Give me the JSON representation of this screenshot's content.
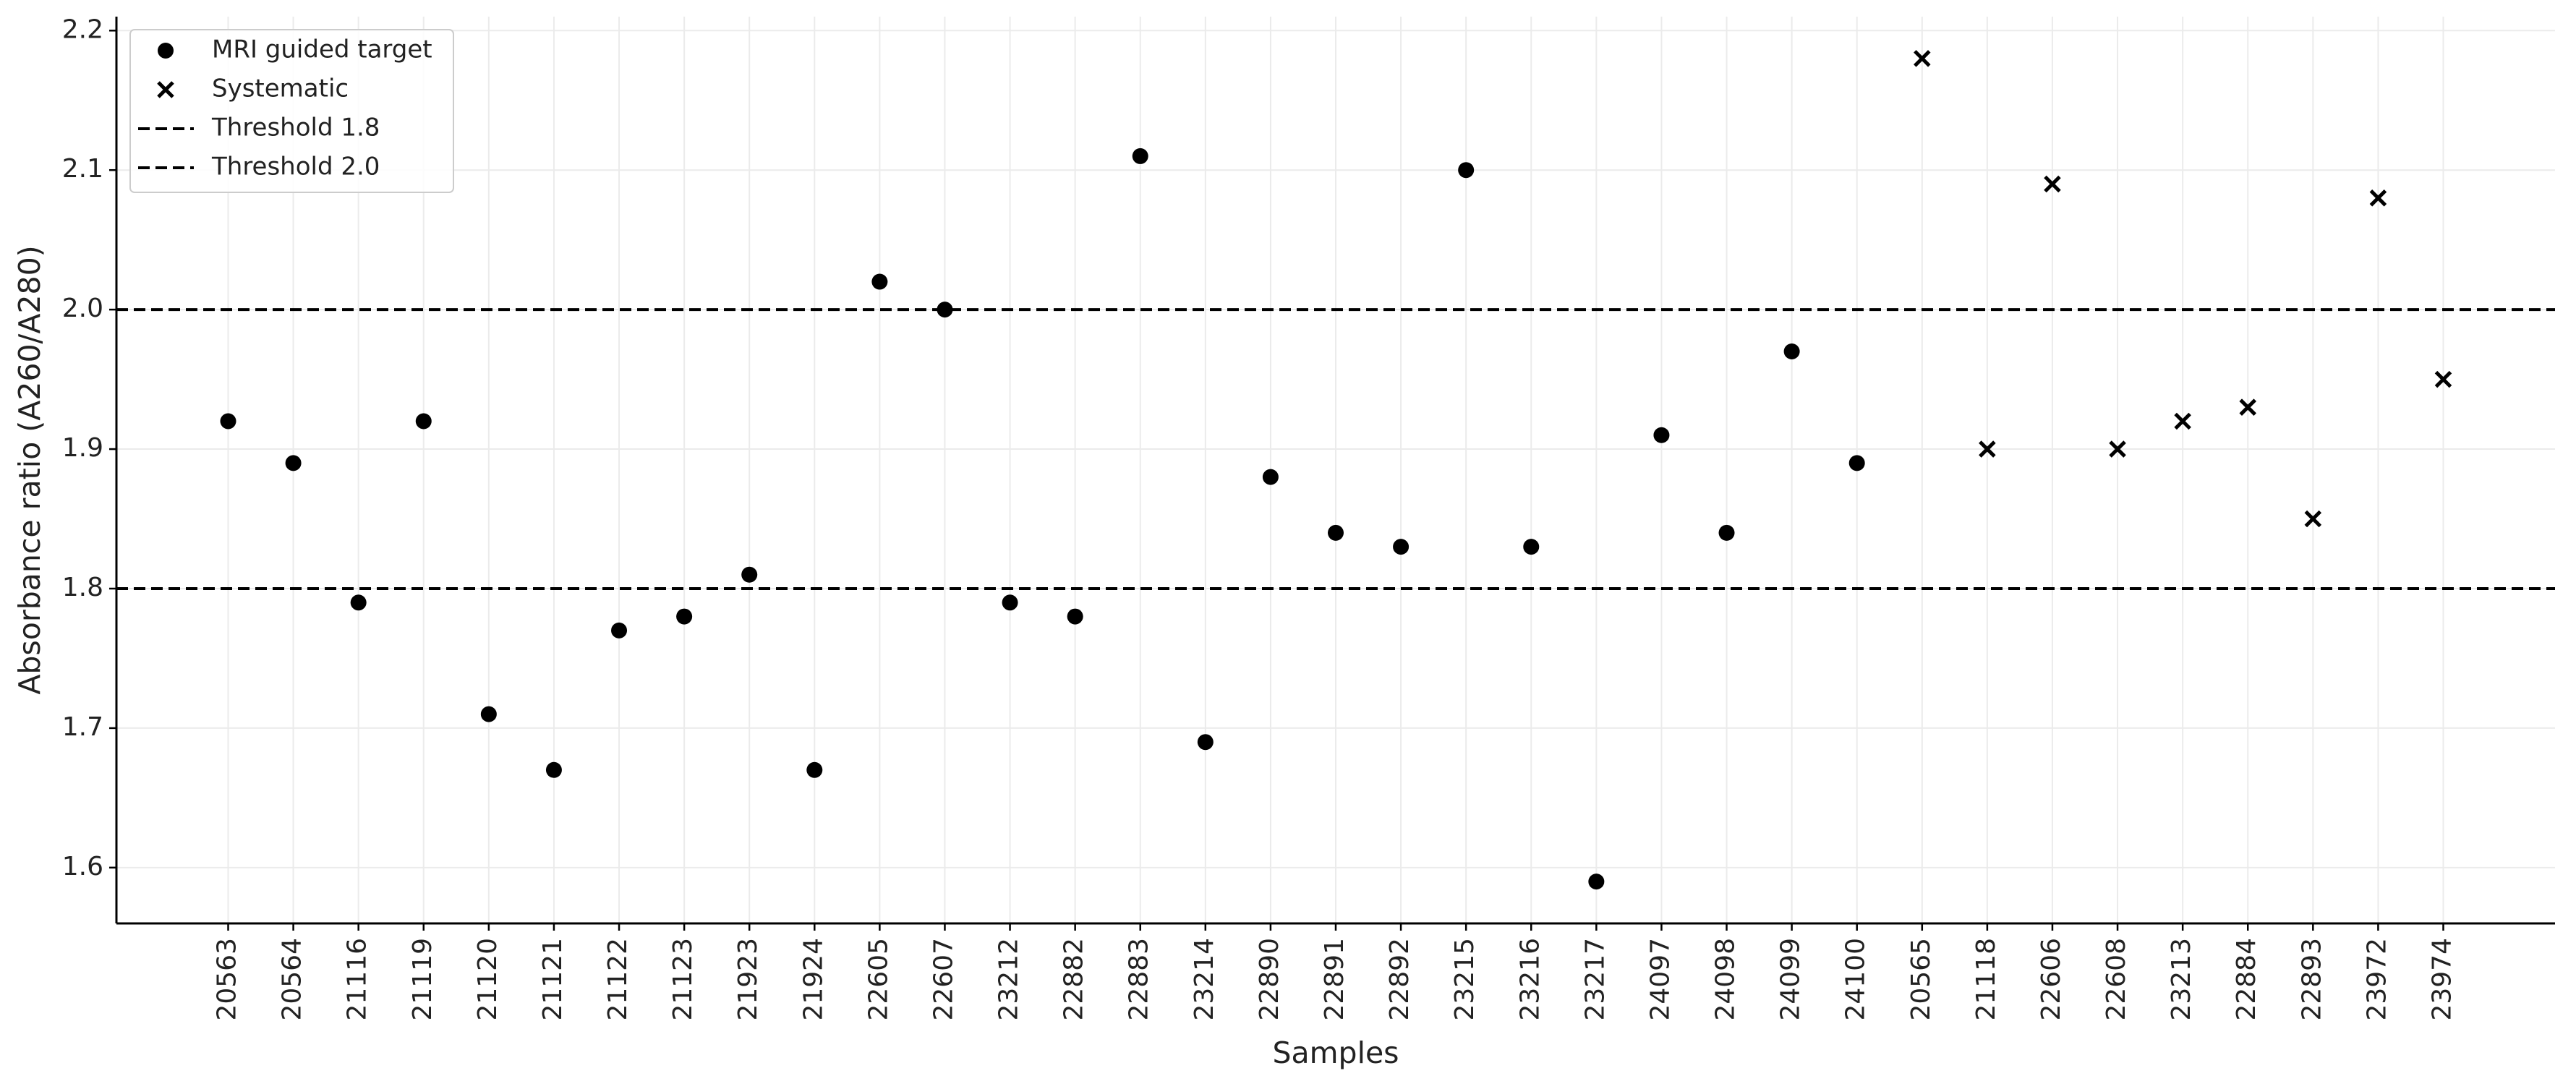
{
  "chart_data": {
    "type": "scatter",
    "x_label": "Samples",
    "y_label": "Absorbance ratio (A260/A280)",
    "categories": [
      "20563",
      "20564",
      "21116",
      "21119",
      "21120",
      "21121",
      "21122",
      "21123",
      "21923",
      "21924",
      "22605",
      "22607",
      "23212",
      "22882",
      "22883",
      "23214",
      "22890",
      "22891",
      "22892",
      "23215",
      "23216",
      "23217",
      "24097",
      "24098",
      "24099",
      "24100",
      "20565",
      "21118",
      "22606",
      "22608",
      "23213",
      "22884",
      "22893",
      "23972",
      "23974"
    ],
    "series": [
      {
        "name": "MRI guided target",
        "color": "#000000",
        "marker": "o",
        "values": [
          1.92,
          1.89,
          1.79,
          1.92,
          1.71,
          1.67,
          1.77,
          1.78,
          1.81,
          1.67,
          2.02,
          2.0,
          1.79,
          1.78,
          2.11,
          1.69,
          1.88,
          1.84,
          1.83,
          2.1,
          1.83,
          1.59,
          1.91,
          1.84,
          1.97,
          1.89,
          null,
          null,
          null,
          null,
          null,
          null,
          null,
          null,
          null
        ]
      },
      {
        "name": "Systematic",
        "color": "#000000",
        "marker": "x",
        "values": [
          null,
          null,
          null,
          null,
          null,
          null,
          null,
          null,
          null,
          null,
          null,
          null,
          null,
          null,
          null,
          null,
          null,
          null,
          null,
          null,
          null,
          null,
          null,
          null,
          null,
          null,
          2.18,
          1.9,
          2.09,
          1.9,
          1.92,
          1.93,
          1.85,
          2.08,
          1.95
        ]
      }
    ],
    "hlines": [
      {
        "name": "Threshold 1.8",
        "value": 1.8,
        "color": "#000000",
        "style": "dashed"
      },
      {
        "name": "Threshold 2.0",
        "value": 2.0,
        "color": "#000000",
        "style": "dashed"
      }
    ],
    "ylim": [
      1.56,
      2.21
    ],
    "yticks": [
      1.6,
      1.7,
      1.8,
      1.9,
      {
        "value": 2,
        "label": "2.0"
      },
      2.1,
      2.2
    ],
    "grid": true,
    "legend": "upper left"
  }
}
